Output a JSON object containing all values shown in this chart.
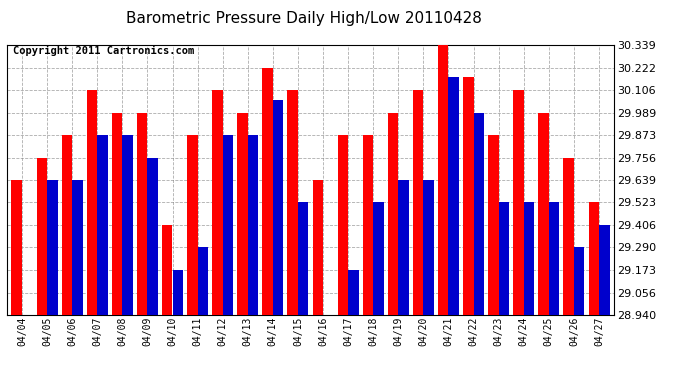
{
  "title": "Barometric Pressure Daily High/Low 20110428",
  "copyright": "Copyright 2011 Cartronics.com",
  "dates": [
    "04/04",
    "04/05",
    "04/06",
    "04/07",
    "04/08",
    "04/09",
    "04/10",
    "04/11",
    "04/12",
    "04/13",
    "04/14",
    "04/15",
    "04/16",
    "04/17",
    "04/18",
    "04/19",
    "04/20",
    "04/21",
    "04/22",
    "04/23",
    "04/24",
    "04/25",
    "04/26",
    "04/27"
  ],
  "highs": [
    29.638,
    29.756,
    29.873,
    30.106,
    29.989,
    29.989,
    29.406,
    29.873,
    30.106,
    29.989,
    30.222,
    30.106,
    29.639,
    29.873,
    29.873,
    29.989,
    30.106,
    30.339,
    30.173,
    29.873,
    30.106,
    29.989,
    29.756,
    29.523
  ],
  "lows": [
    28.94,
    29.639,
    29.639,
    29.873,
    29.873,
    29.756,
    29.173,
    29.29,
    29.873,
    29.873,
    30.056,
    29.523,
    28.94,
    29.173,
    29.523,
    29.639,
    29.639,
    30.173,
    29.989,
    29.523,
    29.523,
    29.523,
    29.29,
    29.406
  ],
  "ymin": 28.94,
  "ymax": 30.339,
  "yticks": [
    28.94,
    29.056,
    29.173,
    29.29,
    29.406,
    29.523,
    29.639,
    29.756,
    29.873,
    29.989,
    30.106,
    30.222,
    30.339
  ],
  "high_color": "#ff0000",
  "low_color": "#0000cc",
  "bg_color": "#ffffff",
  "grid_color": "#888888",
  "title_fontsize": 11,
  "copyright_fontsize": 7.5
}
